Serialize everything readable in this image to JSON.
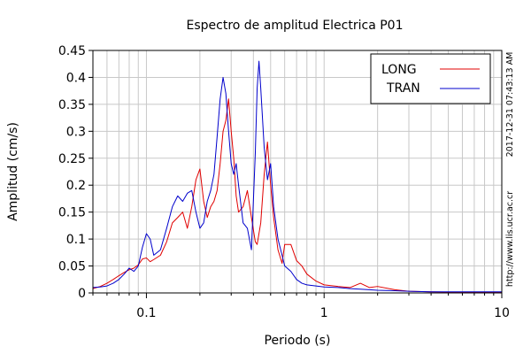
{
  "chart_data": {
    "type": "line",
    "title": "Espectro de amplitud Electrica P01",
    "xlabel": "Periodo (s)",
    "ylabel": "Amplitud (cm/s)",
    "xscale": "log",
    "xlim": [
      0.05,
      10
    ],
    "ylim": [
      0,
      0.45
    ],
    "x_ticks": [
      {
        "value": 0.1,
        "label": "0.1"
      },
      {
        "value": 1,
        "label": "1"
      },
      {
        "value": 10,
        "label": "10"
      }
    ],
    "y_ticks": [
      {
        "value": 0,
        "label": "0"
      },
      {
        "value": 0.05,
        "label": "0.05"
      },
      {
        "value": 0.1,
        "label": "0.1"
      },
      {
        "value": 0.15,
        "label": "0.15"
      },
      {
        "value": 0.2,
        "label": "0.2"
      },
      {
        "value": 0.25,
        "label": "0.25"
      },
      {
        "value": 0.3,
        "label": "0.3"
      },
      {
        "value": 0.35,
        "label": "0.35"
      },
      {
        "value": 0.4,
        "label": "0.4"
      },
      {
        "value": 0.45,
        "label": "0.45"
      }
    ],
    "grid": true,
    "legend_position": "top-right",
    "series": [
      {
        "name": "LONG",
        "color": "#e00000",
        "points": [
          [
            0.05,
            0.008
          ],
          [
            0.055,
            0.012
          ],
          [
            0.06,
            0.018
          ],
          [
            0.065,
            0.025
          ],
          [
            0.07,
            0.032
          ],
          [
            0.075,
            0.038
          ],
          [
            0.08,
            0.043
          ],
          [
            0.085,
            0.046
          ],
          [
            0.09,
            0.052
          ],
          [
            0.095,
            0.063
          ],
          [
            0.1,
            0.065
          ],
          [
            0.105,
            0.058
          ],
          [
            0.11,
            0.062
          ],
          [
            0.12,
            0.07
          ],
          [
            0.13,
            0.095
          ],
          [
            0.14,
            0.13
          ],
          [
            0.15,
            0.14
          ],
          [
            0.16,
            0.15
          ],
          [
            0.17,
            0.12
          ],
          [
            0.18,
            0.16
          ],
          [
            0.19,
            0.21
          ],
          [
            0.2,
            0.23
          ],
          [
            0.21,
            0.17
          ],
          [
            0.22,
            0.14
          ],
          [
            0.23,
            0.16
          ],
          [
            0.24,
            0.17
          ],
          [
            0.25,
            0.19
          ],
          [
            0.26,
            0.24
          ],
          [
            0.27,
            0.3
          ],
          [
            0.28,
            0.32
          ],
          [
            0.29,
            0.36
          ],
          [
            0.3,
            0.3
          ],
          [
            0.31,
            0.25
          ],
          [
            0.32,
            0.18
          ],
          [
            0.33,
            0.15
          ],
          [
            0.35,
            0.16
          ],
          [
            0.37,
            0.19
          ],
          [
            0.39,
            0.14
          ],
          [
            0.41,
            0.095
          ],
          [
            0.42,
            0.09
          ],
          [
            0.44,
            0.13
          ],
          [
            0.46,
            0.22
          ],
          [
            0.48,
            0.28
          ],
          [
            0.5,
            0.2
          ],
          [
            0.52,
            0.14
          ],
          [
            0.55,
            0.08
          ],
          [
            0.58,
            0.055
          ],
          [
            0.6,
            0.09
          ],
          [
            0.65,
            0.09
          ],
          [
            0.7,
            0.06
          ],
          [
            0.75,
            0.05
          ],
          [
            0.8,
            0.035
          ],
          [
            0.9,
            0.022
          ],
          [
            1.0,
            0.015
          ],
          [
            1.2,
            0.012
          ],
          [
            1.4,
            0.01
          ],
          [
            1.6,
            0.018
          ],
          [
            1.8,
            0.01
          ],
          [
            2.0,
            0.012
          ],
          [
            2.5,
            0.006
          ],
          [
            3.0,
            0.003
          ],
          [
            4.0,
            0.002
          ],
          [
            6.0,
            0.001
          ],
          [
            10.0,
            0.001
          ]
        ]
      },
      {
        "name": "TRAN",
        "color": "#0000cc",
        "points": [
          [
            0.05,
            0.01
          ],
          [
            0.055,
            0.011
          ],
          [
            0.06,
            0.013
          ],
          [
            0.065,
            0.018
          ],
          [
            0.07,
            0.025
          ],
          [
            0.075,
            0.035
          ],
          [
            0.08,
            0.046
          ],
          [
            0.085,
            0.04
          ],
          [
            0.09,
            0.05
          ],
          [
            0.095,
            0.085
          ],
          [
            0.1,
            0.11
          ],
          [
            0.105,
            0.1
          ],
          [
            0.11,
            0.07
          ],
          [
            0.12,
            0.08
          ],
          [
            0.13,
            0.12
          ],
          [
            0.14,
            0.16
          ],
          [
            0.15,
            0.18
          ],
          [
            0.16,
            0.17
          ],
          [
            0.17,
            0.185
          ],
          [
            0.18,
            0.19
          ],
          [
            0.19,
            0.15
          ],
          [
            0.2,
            0.12
          ],
          [
            0.21,
            0.13
          ],
          [
            0.22,
            0.17
          ],
          [
            0.23,
            0.19
          ],
          [
            0.24,
            0.22
          ],
          [
            0.25,
            0.29
          ],
          [
            0.26,
            0.36
          ],
          [
            0.27,
            0.4
          ],
          [
            0.28,
            0.37
          ],
          [
            0.29,
            0.3
          ],
          [
            0.3,
            0.24
          ],
          [
            0.31,
            0.22
          ],
          [
            0.32,
            0.24
          ],
          [
            0.33,
            0.2
          ],
          [
            0.35,
            0.13
          ],
          [
            0.37,
            0.12
          ],
          [
            0.39,
            0.08
          ],
          [
            0.41,
            0.26
          ],
          [
            0.42,
            0.38
          ],
          [
            0.43,
            0.43
          ],
          [
            0.44,
            0.38
          ],
          [
            0.46,
            0.27
          ],
          [
            0.48,
            0.21
          ],
          [
            0.5,
            0.24
          ],
          [
            0.52,
            0.16
          ],
          [
            0.55,
            0.1
          ],
          [
            0.58,
            0.07
          ],
          [
            0.6,
            0.05
          ],
          [
            0.65,
            0.04
          ],
          [
            0.7,
            0.025
          ],
          [
            0.75,
            0.018
          ],
          [
            0.8,
            0.015
          ],
          [
            0.9,
            0.013
          ],
          [
            1.0,
            0.011
          ],
          [
            1.2,
            0.01
          ],
          [
            1.4,
            0.008
          ],
          [
            1.6,
            0.007
          ],
          [
            1.8,
            0.006
          ],
          [
            2.0,
            0.005
          ],
          [
            2.5,
            0.004
          ],
          [
            3.0,
            0.003
          ],
          [
            4.0,
            0.002
          ],
          [
            6.0,
            0.002
          ],
          [
            10.0,
            0.002
          ]
        ]
      }
    ]
  },
  "side_text": {
    "timestamp": "2017-12-31 07:43:13 AM",
    "url": "http://www.lis.ucr.ac.cr"
  }
}
